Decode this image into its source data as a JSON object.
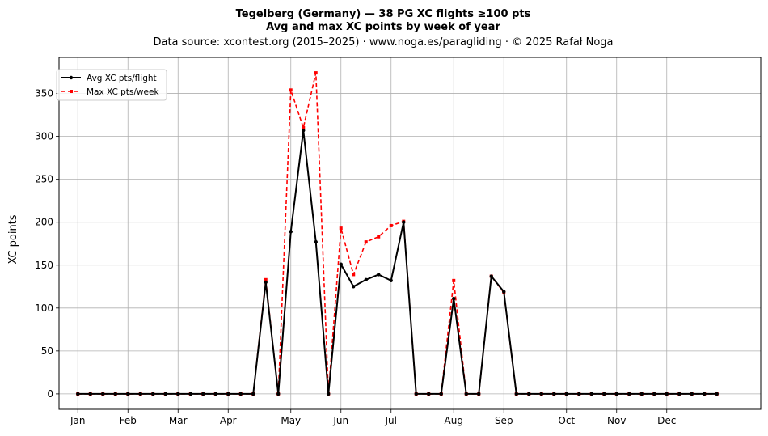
{
  "chart_data": {
    "type": "line",
    "title": "Tegelberg (Germany)  —  38 PG XC flights ≥100 pts",
    "subtitle": "Avg and max XC points by week of year",
    "source_line": "Data source: xcontest.org (2015–2025)  ·  www.noga.es/paragliding  ·  © 2025 Rafał Noga",
    "ylabel": "XC points",
    "xlabel": "",
    "xlim": [
      -1.5,
      54.5
    ],
    "ylim": [
      -18,
      392
    ],
    "yticks": [
      0,
      50,
      100,
      150,
      200,
      250,
      300,
      350
    ],
    "month_ticks": [
      {
        "label": "Jan",
        "week": 0
      },
      {
        "label": "Feb",
        "week": 4
      },
      {
        "label": "Mar",
        "week": 8
      },
      {
        "label": "Apr",
        "week": 12
      },
      {
        "label": "May",
        "week": 17
      },
      {
        "label": "Jun",
        "week": 21
      },
      {
        "label": "Jul",
        "week": 25
      },
      {
        "label": "Aug",
        "week": 30
      },
      {
        "label": "Sep",
        "week": 34
      },
      {
        "label": "Oct",
        "week": 39
      },
      {
        "label": "Nov",
        "week": 43
      },
      {
        "label": "Dec",
        "week": 47
      }
    ],
    "grid": true,
    "legend_position": "top-left",
    "x": [
      0,
      1,
      2,
      3,
      4,
      5,
      6,
      7,
      8,
      9,
      10,
      11,
      12,
      13,
      14,
      15,
      16,
      17,
      18,
      19,
      20,
      21,
      22,
      23,
      24,
      25,
      26,
      27,
      28,
      29,
      30,
      31,
      32,
      33,
      34,
      35,
      36,
      37,
      38,
      39,
      40,
      41,
      42,
      43,
      44,
      45,
      46,
      47,
      48,
      49,
      50,
      51
    ],
    "series": [
      {
        "name": "Avg XC pts/flight",
        "color": "#000000",
        "style": "solid",
        "marker": "circle",
        "values": [
          0,
          0,
          0,
          0,
          0,
          0,
          0,
          0,
          0,
          0,
          0,
          0,
          0,
          0,
          0,
          130,
          0,
          189,
          307,
          177,
          0,
          151,
          125,
          133,
          139,
          132,
          200,
          0,
          0,
          0,
          111,
          0,
          0,
          137,
          119,
          0,
          0,
          0,
          0,
          0,
          0,
          0,
          0,
          0,
          0,
          0,
          0,
          0,
          0,
          0,
          0,
          0
        ]
      },
      {
        "name": "Max XC pts/week",
        "color": "#ff0000",
        "style": "dashed",
        "marker": "square",
        "values": [
          0,
          0,
          0,
          0,
          0,
          0,
          0,
          0,
          0,
          0,
          0,
          0,
          0,
          0,
          0,
          133,
          0,
          354,
          310,
          374,
          0,
          193,
          139,
          177,
          183,
          196,
          201,
          0,
          0,
          0,
          132,
          0,
          0,
          137,
          118,
          0,
          0,
          0,
          0,
          0,
          0,
          0,
          0,
          0,
          0,
          0,
          0,
          0,
          0,
          0,
          0,
          0
        ]
      }
    ]
  }
}
